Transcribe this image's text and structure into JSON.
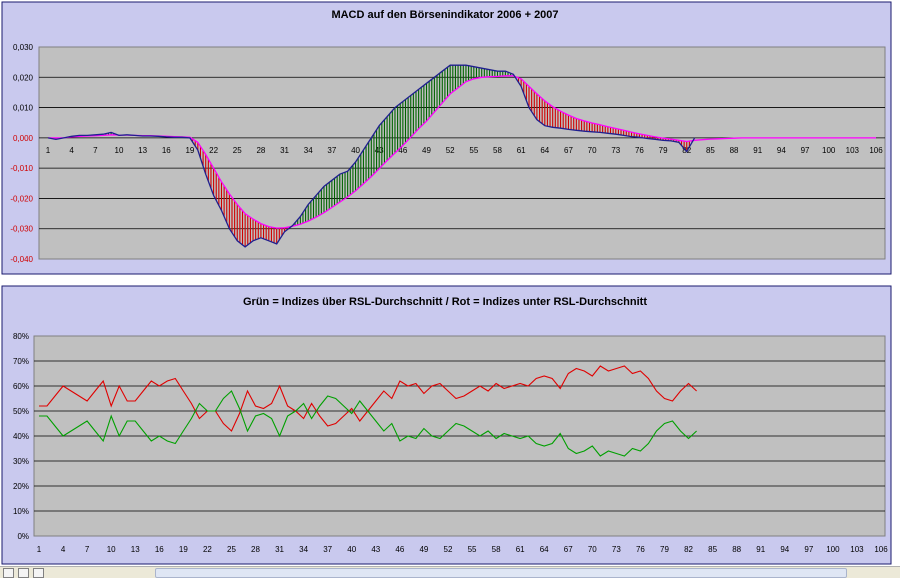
{
  "colors": {
    "frame_bg": "#c9c9ee",
    "frame_border": "#1a1a6e",
    "plot_bg": "#c0c0c0",
    "gridline": "#000000",
    "macd_line": "#1f1f8f",
    "signal_line": "#ff00ff",
    "hist_up": "#006400",
    "hist_down": "#d00000",
    "rsl_red": "#e00000",
    "rsl_green": "#00a000"
  },
  "chart_data": [
    {
      "type": "line",
      "title": "MACD auf den Börsenindikator 2006 + 2007",
      "xlabel": "",
      "ylabel": "",
      "ylim": [
        -0.04,
        0.03
      ],
      "y_ticks": [
        "0,030",
        "0,020",
        "0,010",
        "0,000",
        "-0,010",
        "-0,020",
        "-0,030",
        "-0,040"
      ],
      "x_ticks": [
        "1",
        "4",
        "7",
        "10",
        "13",
        "16",
        "19",
        "22",
        "25",
        "28",
        "31",
        "34",
        "37",
        "40",
        "43",
        "46",
        "49",
        "52",
        "55",
        "58",
        "61",
        "64",
        "67",
        "70",
        "73",
        "76",
        "79",
        "82",
        "85",
        "88",
        "91",
        "94",
        "97",
        "100",
        "103",
        "106"
      ],
      "x_range": [
        1,
        106
      ],
      "grid": true,
      "legend": "none",
      "series": [
        {
          "key": "macd",
          "x": [
            1,
            2,
            3,
            4,
            5,
            6,
            7,
            8,
            9,
            10,
            11,
            12,
            13,
            14,
            15,
            16,
            17,
            18,
            19,
            20,
            21,
            22,
            23,
            24,
            25,
            26,
            27,
            28,
            29,
            30,
            31,
            32,
            33,
            34,
            35,
            36,
            37,
            38,
            39,
            40,
            41,
            42,
            43,
            44,
            45,
            46,
            47,
            48,
            49,
            50,
            51,
            52,
            53,
            54,
            55,
            56,
            57,
            58,
            59,
            60,
            61,
            62,
            63,
            64,
            65,
            66,
            67,
            68,
            69,
            70,
            71,
            72,
            73,
            74,
            75,
            76,
            77,
            78,
            79,
            80,
            81,
            82,
            83
          ],
          "values": [
            0,
            -0.0005,
            0,
            0.0005,
            0.0008,
            0.0008,
            0.001,
            0.0012,
            0.0018,
            0.0008,
            0.001,
            0.0008,
            0.0006,
            0.0006,
            0.0005,
            0.0003,
            0.0002,
            0.0002,
            0,
            -0.004,
            -0.012,
            -0.019,
            -0.024,
            -0.03,
            -0.034,
            -0.036,
            -0.034,
            -0.033,
            -0.034,
            -0.035,
            -0.031,
            -0.029,
            -0.026,
            -0.022,
            -0.019,
            -0.016,
            -0.014,
            -0.012,
            -0.011,
            -0.008,
            -0.004,
            0,
            0.004,
            0.007,
            0.01,
            0.012,
            0.014,
            0.016,
            0.018,
            0.02,
            0.022,
            0.024,
            0.024,
            0.024,
            0.0235,
            0.023,
            0.0225,
            0.022,
            0.022,
            0.021,
            0.017,
            0.01,
            0.006,
            0.004,
            0.0035,
            0.0032,
            0.0028,
            0.0025,
            0.0022,
            0.002,
            0.0018,
            0.0015,
            0.0012,
            0.0008,
            0.0004,
            0.0002,
            -0.0002,
            -0.0005,
            -0.0008,
            -0.001,
            -0.0015,
            -0.0045,
            0
          ]
        },
        {
          "key": "signal",
          "x": [
            1,
            2,
            3,
            4,
            5,
            6,
            7,
            8,
            9,
            10,
            11,
            12,
            13,
            14,
            15,
            16,
            17,
            18,
            19,
            20,
            21,
            22,
            23,
            24,
            25,
            26,
            27,
            28,
            29,
            30,
            31,
            32,
            33,
            34,
            35,
            36,
            37,
            38,
            39,
            40,
            41,
            42,
            43,
            44,
            45,
            46,
            47,
            48,
            49,
            50,
            51,
            52,
            53,
            54,
            55,
            56,
            57,
            58,
            59,
            60,
            61,
            62,
            63,
            64,
            65,
            66,
            67,
            68,
            69,
            70,
            71,
            72,
            73,
            74,
            75,
            76,
            77,
            78,
            79,
            80,
            81,
            82,
            83,
            84,
            85,
            86,
            87,
            88,
            89,
            90,
            91,
            92,
            93,
            94,
            95,
            96,
            97,
            98,
            99,
            100,
            101,
            102,
            103,
            104,
            105,
            106
          ],
          "values": [
            0,
            0,
            0,
            0.0003,
            0.0005,
            0.0006,
            0.0007,
            0.0008,
            0.001,
            0.0009,
            0.0009,
            0.0008,
            0.0007,
            0.0007,
            0.0006,
            0.0005,
            0.0004,
            0.0003,
            0.0002,
            -0.0015,
            -0.0055,
            -0.01,
            -0.0145,
            -0.0185,
            -0.022,
            -0.025,
            -0.0268,
            -0.0283,
            -0.0293,
            -0.0298,
            -0.0297,
            -0.0292,
            -0.0285,
            -0.0275,
            -0.0262,
            -0.0247,
            -0.023,
            -0.0212,
            -0.0195,
            -0.0175,
            -0.0152,
            -0.0128,
            -0.0102,
            -0.0075,
            -0.005,
            -0.0025,
            0.0002,
            0.003,
            0.0055,
            0.0085,
            0.0115,
            0.0145,
            0.0165,
            0.0185,
            0.0195,
            0.02,
            0.0202,
            0.0203,
            0.0205,
            0.0205,
            0.0195,
            0.017,
            0.0145,
            0.0122,
            0.0103,
            0.0088,
            0.0075,
            0.0064,
            0.0056,
            0.0049,
            0.0043,
            0.0037,
            0.0031,
            0.0025,
            0.0019,
            0.0013,
            0.0008,
            0.0003,
            -0.0001,
            -0.0004,
            -0.0008,
            -0.0012,
            -0.0008,
            -0.0006,
            -0.0004,
            -0.0003,
            -0.0002,
            -0.0001,
            0,
            0,
            0,
            0,
            0,
            0,
            0,
            0,
            0,
            0,
            0,
            0,
            0,
            0,
            0,
            0,
            0,
            0
          ]
        }
      ],
      "histogram_note": "vertical hatching between MACD and signal: green where MACD above signal, red where below"
    },
    {
      "type": "line",
      "title": "Grün = Indizes über RSL-Durchschnitt / Rot = Indizes unter RSL-Durchschnitt",
      "xlabel": "",
      "ylabel": "",
      "ylim": [
        0,
        80
      ],
      "y_ticks": [
        "80%",
        "70%",
        "60%",
        "50%",
        "40%",
        "30%",
        "20%",
        "10%",
        "0%"
      ],
      "x_ticks": [
        "1",
        "4",
        "7",
        "10",
        "13",
        "16",
        "19",
        "22",
        "25",
        "28",
        "31",
        "34",
        "37",
        "40",
        "43",
        "46",
        "49",
        "52",
        "55",
        "58",
        "61",
        "64",
        "67",
        "70",
        "73",
        "76",
        "79",
        "82",
        "85",
        "88",
        "91",
        "94",
        "97",
        "100",
        "103",
        "106"
      ],
      "x_range": [
        1,
        106
      ],
      "grid": true,
      "legend": "none",
      "series": [
        {
          "key": "rot",
          "x": [
            1,
            2,
            3,
            4,
            5,
            6,
            7,
            8,
            9,
            10,
            11,
            12,
            13,
            14,
            15,
            16,
            17,
            18,
            19,
            20,
            21,
            22,
            23,
            24,
            25,
            26,
            27,
            28,
            29,
            30,
            31,
            32,
            33,
            34,
            35,
            36,
            37,
            38,
            39,
            40,
            41,
            42,
            43,
            44,
            45,
            46,
            47,
            48,
            49,
            50,
            51,
            52,
            53,
            54,
            55,
            56,
            57,
            58,
            59,
            60,
            61,
            62,
            63,
            64,
            65,
            66,
            67,
            68,
            69,
            70,
            71,
            72,
            73,
            74,
            75,
            76,
            77,
            78,
            79,
            80,
            81,
            82,
            83
          ],
          "values": [
            52,
            52,
            56,
            60,
            58,
            56,
            54,
            58,
            62,
            52,
            60,
            54,
            54,
            58,
            62,
            60,
            62,
            63,
            58,
            53,
            47,
            50,
            50,
            45,
            42,
            49,
            58,
            52,
            51,
            53,
            60,
            52,
            50,
            47,
            53,
            48,
            44,
            45,
            48,
            51,
            46,
            50,
            54,
            58,
            55,
            62,
            60,
            61,
            57,
            60,
            61,
            58,
            55,
            56,
            58,
            60,
            58,
            61,
            59,
            60,
            61,
            60,
            63,
            64,
            63,
            59,
            65,
            67,
            66,
            64,
            68,
            66,
            67,
            68,
            65,
            66,
            63,
            58,
            55,
            54,
            58,
            61,
            58
          ]
        },
        {
          "key": "gruen",
          "x": [
            1,
            2,
            3,
            4,
            5,
            6,
            7,
            8,
            9,
            10,
            11,
            12,
            13,
            14,
            15,
            16,
            17,
            18,
            19,
            20,
            21,
            22,
            23,
            24,
            25,
            26,
            27,
            28,
            29,
            30,
            31,
            32,
            33,
            34,
            35,
            36,
            37,
            38,
            39,
            40,
            41,
            42,
            43,
            44,
            45,
            46,
            47,
            48,
            49,
            50,
            51,
            52,
            53,
            54,
            55,
            56,
            57,
            58,
            59,
            60,
            61,
            62,
            63,
            64,
            65,
            66,
            67,
            68,
            69,
            70,
            71,
            72,
            73,
            74,
            75,
            76,
            77,
            78,
            79,
            80,
            81,
            82,
            83
          ],
          "values": [
            48,
            48,
            44,
            40,
            42,
            44,
            46,
            42,
            38,
            48,
            40,
            46,
            46,
            42,
            38,
            40,
            38,
            37,
            42,
            47,
            53,
            50,
            50,
            55,
            58,
            51,
            42,
            48,
            49,
            47,
            40,
            48,
            50,
            53,
            47,
            52,
            56,
            55,
            52,
            49,
            54,
            50,
            46,
            42,
            45,
            38,
            40,
            39,
            43,
            40,
            39,
            42,
            45,
            44,
            42,
            40,
            42,
            39,
            41,
            40,
            39,
            40,
            37,
            36,
            37,
            41,
            35,
            33,
            34,
            36,
            32,
            34,
            33,
            32,
            35,
            34,
            37,
            42,
            45,
            46,
            42,
            39,
            42
          ]
        }
      ]
    }
  ]
}
